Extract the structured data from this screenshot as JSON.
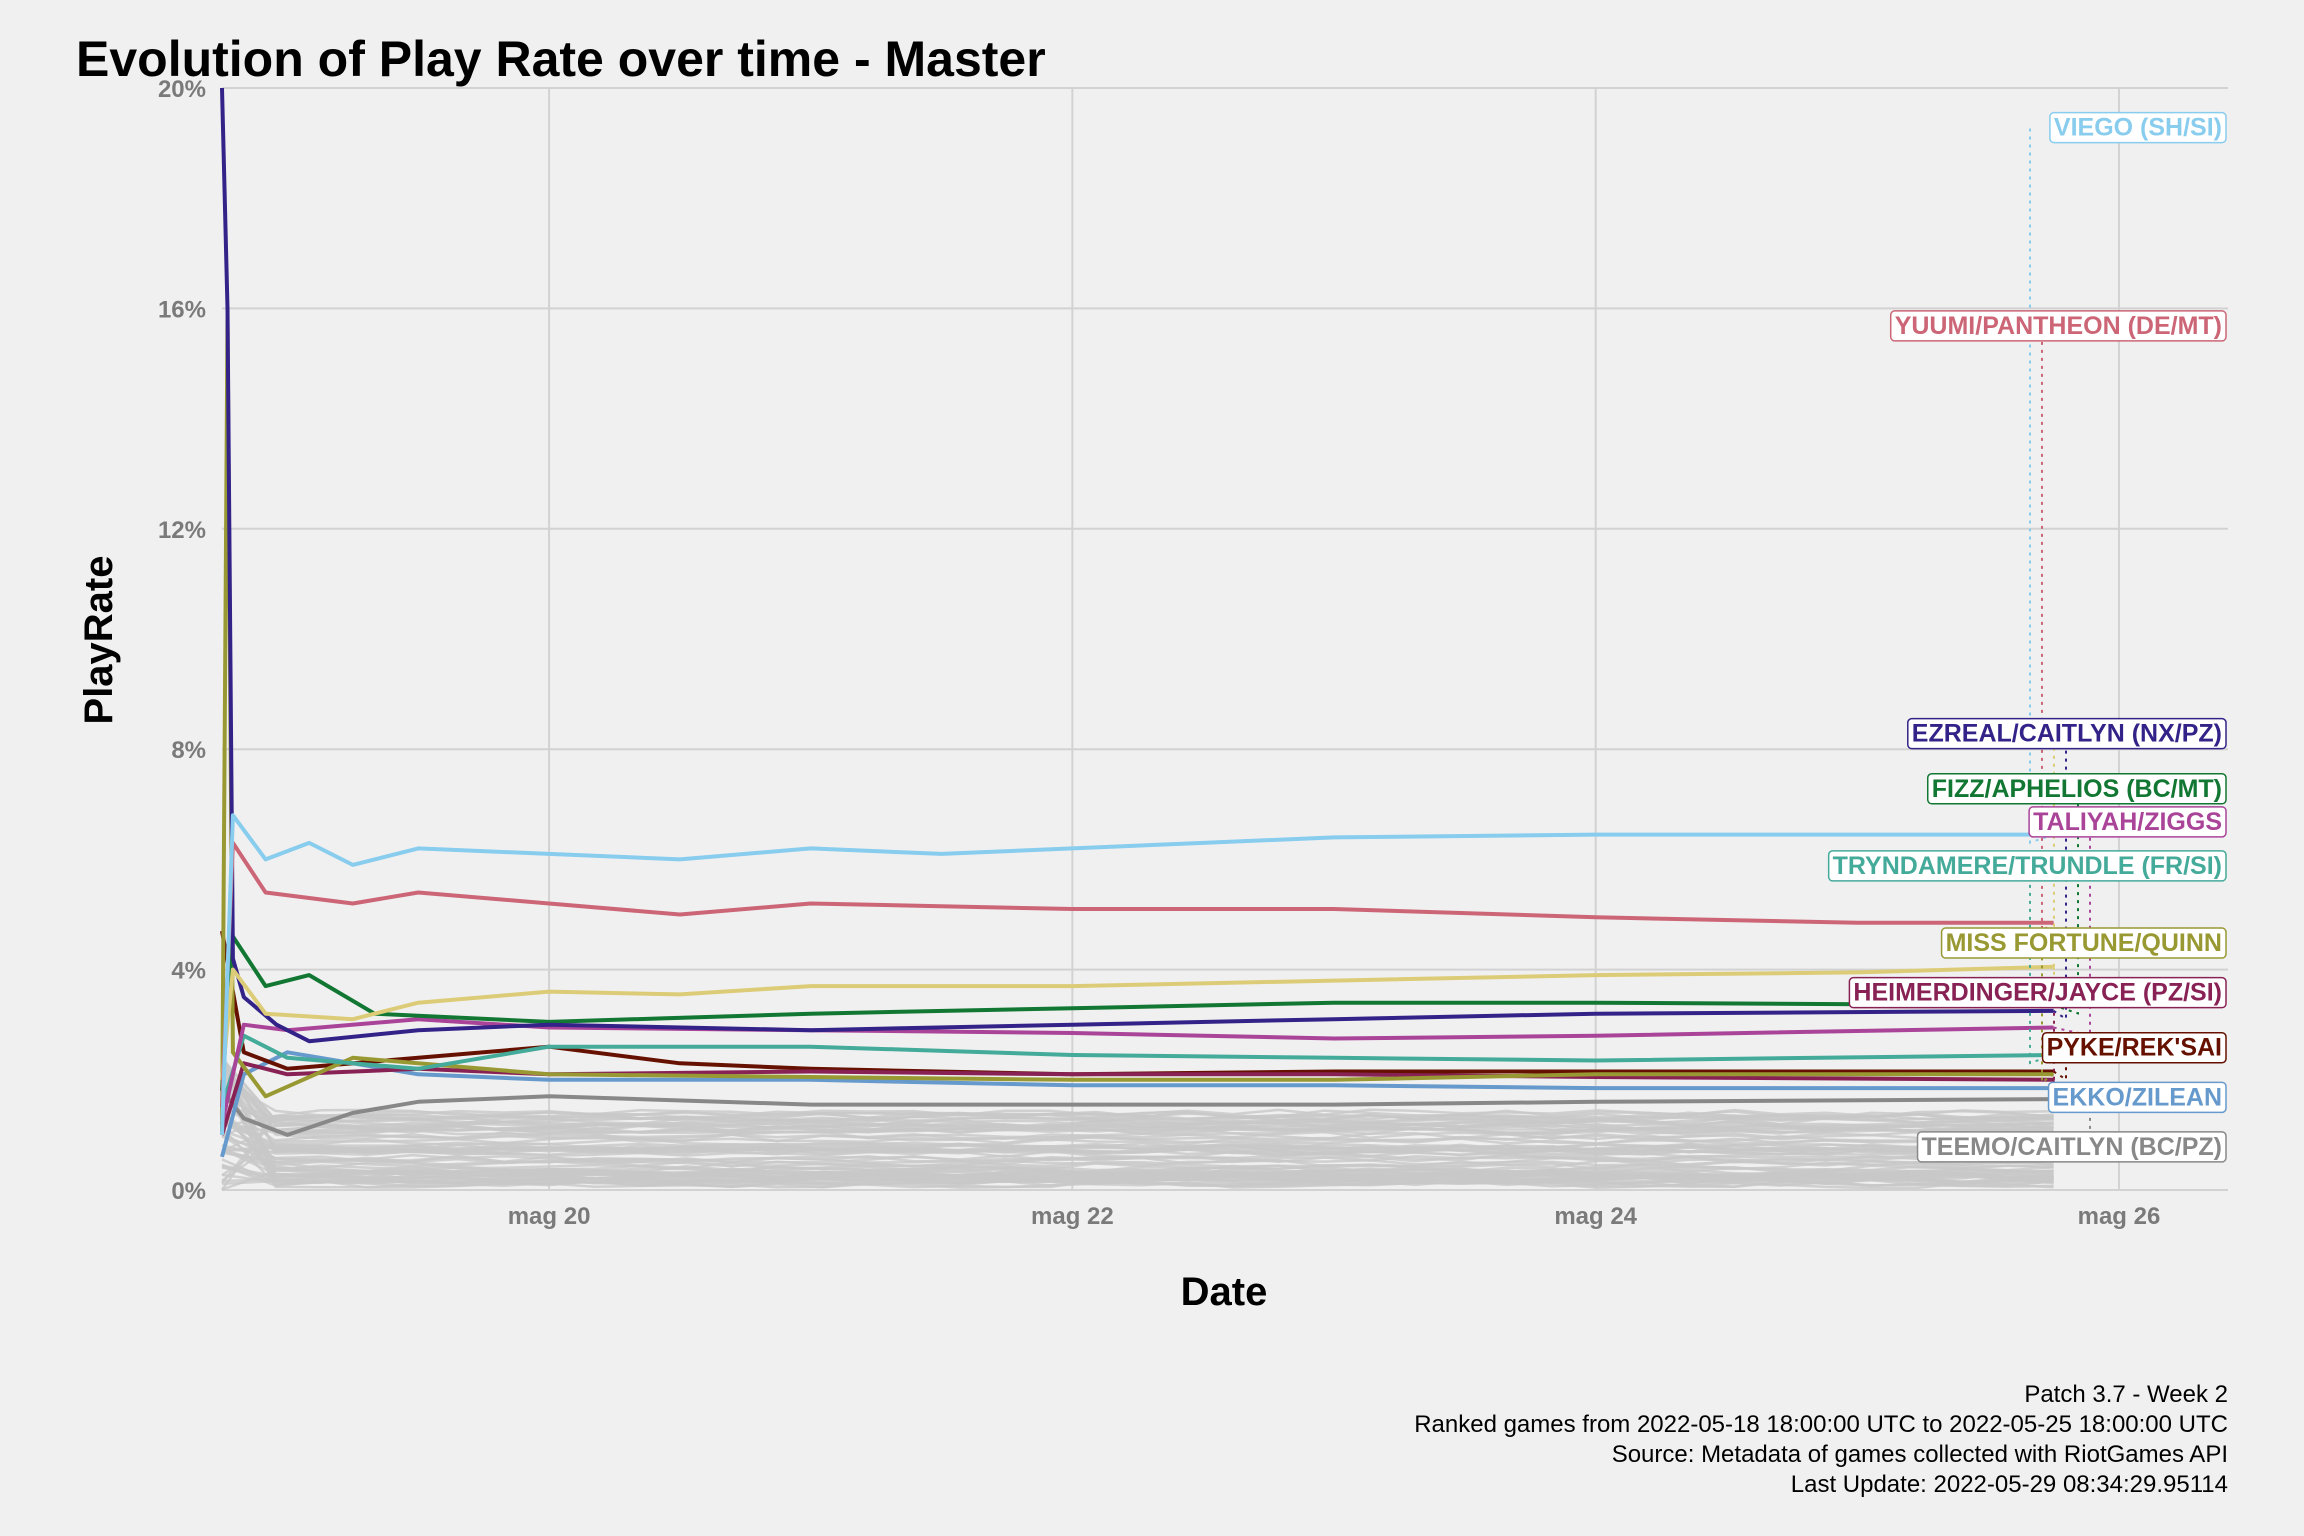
{
  "chart_data": {
    "type": "line",
    "title": "Evolution of Play Rate over time - Master",
    "xlabel": "Date",
    "ylabel": "PlayRate",
    "x_range": [
      "2022-05-18T18:00",
      "2022-05-26T10:00"
    ],
    "x_ticks": [
      {
        "date": "2022-05-20",
        "label": "mag 20"
      },
      {
        "date": "2022-05-22",
        "label": "mag 22"
      },
      {
        "date": "2022-05-24",
        "label": "mag 24"
      },
      {
        "date": "2022-05-26",
        "label": "mag 26"
      }
    ],
    "ylim": [
      0,
      20
    ],
    "y_ticks": [
      {
        "value": 0,
        "label": "0%"
      },
      {
        "value": 4,
        "label": "4%"
      },
      {
        "value": 8,
        "label": "8%"
      },
      {
        "value": 12,
        "label": "12%"
      },
      {
        "value": 16,
        "label": "16%"
      },
      {
        "value": 20,
        "label": "20%"
      }
    ],
    "grid": true,
    "legend": "direct labels at right",
    "series": [
      {
        "name": "VIEGO (SH/SI)",
        "color": "#88ccee",
        "label_value": 19.3,
        "points": [
          [
            "2022-05-18T18:00",
            1.0
          ],
          [
            "2022-05-18T19:00",
            6.8
          ],
          [
            "2022-05-18T22:00",
            6.0
          ],
          [
            "2022-05-19T02:00",
            6.3
          ],
          [
            "2022-05-19T06:00",
            5.9
          ],
          [
            "2022-05-19T12:00",
            6.2
          ],
          [
            "2022-05-20T00:00",
            6.1
          ],
          [
            "2022-05-20T12:00",
            6.0
          ],
          [
            "2022-05-21T00:00",
            6.2
          ],
          [
            "2022-05-21T12:00",
            6.1
          ],
          [
            "2022-05-22T00:00",
            6.2
          ],
          [
            "2022-05-22T12:00",
            6.3
          ],
          [
            "2022-05-23T00:00",
            6.4
          ],
          [
            "2022-05-24T00:00",
            6.45
          ],
          [
            "2022-05-25T18:00",
            6.45
          ]
        ]
      },
      {
        "name": "YUUMI/PANTHEON (DE/MT)",
        "color": "#cc6677",
        "label_value": 15.7,
        "points": [
          [
            "2022-05-18T18:00",
            1.5
          ],
          [
            "2022-05-18T19:00",
            6.3
          ],
          [
            "2022-05-18T22:00",
            5.4
          ],
          [
            "2022-05-19T06:00",
            5.2
          ],
          [
            "2022-05-19T12:00",
            5.4
          ],
          [
            "2022-05-20T00:00",
            5.2
          ],
          [
            "2022-05-20T12:00",
            5.0
          ],
          [
            "2022-05-21T00:00",
            5.2
          ],
          [
            "2022-05-22T00:00",
            5.1
          ],
          [
            "2022-05-23T00:00",
            5.1
          ],
          [
            "2022-05-24T00:00",
            4.95
          ],
          [
            "2022-05-25T00:00",
            4.85
          ],
          [
            "2022-05-25T18:00",
            4.85
          ]
        ]
      },
      {
        "name": "",
        "color": "#ddcc77",
        "label_value": 8.5,
        "points": [
          [
            "2022-05-18T18:00",
            2.0
          ],
          [
            "2022-05-18T19:00",
            4.0
          ],
          [
            "2022-05-18T22:00",
            3.2
          ],
          [
            "2022-05-19T06:00",
            3.1
          ],
          [
            "2022-05-19T12:00",
            3.4
          ],
          [
            "2022-05-20T00:00",
            3.6
          ],
          [
            "2022-05-20T12:00",
            3.55
          ],
          [
            "2022-05-21T00:00",
            3.7
          ],
          [
            "2022-05-22T00:00",
            3.7
          ],
          [
            "2022-05-23T00:00",
            3.8
          ],
          [
            "2022-05-24T00:00",
            3.9
          ],
          [
            "2022-05-25T00:00",
            3.95
          ],
          [
            "2022-05-25T18:00",
            4.05
          ]
        ]
      },
      {
        "name": "EZREAL/CAITLYN (NX/PZ)",
        "color": "#332288",
        "label_value": 8.3,
        "points": [
          [
            "2022-05-18T18:00",
            20.0
          ],
          [
            "2022-05-18T18:30",
            16.0
          ],
          [
            "2022-05-18T19:00",
            4.2
          ],
          [
            "2022-05-18T20:00",
            3.5
          ],
          [
            "2022-05-18T23:00",
            3.0
          ],
          [
            "2022-05-19T02:00",
            2.7
          ],
          [
            "2022-05-19T12:00",
            2.9
          ],
          [
            "2022-05-20T00:00",
            3.0
          ],
          [
            "2022-05-21T00:00",
            2.9
          ],
          [
            "2022-05-22T00:00",
            3.0
          ],
          [
            "2022-05-23T00:00",
            3.1
          ],
          [
            "2022-05-24T00:00",
            3.2
          ],
          [
            "2022-05-25T18:00",
            3.25
          ]
        ]
      },
      {
        "name": "FIZZ/APHELIOS (BC/MT)",
        "color": "#117733",
        "label_value": 7.3,
        "points": [
          [
            "2022-05-18T18:00",
            1.8
          ],
          [
            "2022-05-18T19:00",
            4.6
          ],
          [
            "2022-05-18T22:00",
            3.7
          ],
          [
            "2022-05-19T02:00",
            3.9
          ],
          [
            "2022-05-19T08:00",
            3.2
          ],
          [
            "2022-05-20T00:00",
            3.05
          ],
          [
            "2022-05-21T00:00",
            3.2
          ],
          [
            "2022-05-22T00:00",
            3.3
          ],
          [
            "2022-05-23T00:00",
            3.4
          ],
          [
            "2022-05-24T00:00",
            3.4
          ],
          [
            "2022-05-25T18:00",
            3.35
          ]
        ]
      },
      {
        "name": "TALIYAH/ZIGGS",
        "color": "#aa4499",
        "label_value": 6.7,
        "points": [
          [
            "2022-05-18T18:00",
            1.2
          ],
          [
            "2022-05-18T20:00",
            3.0
          ],
          [
            "2022-05-19T00:00",
            2.9
          ],
          [
            "2022-05-19T12:00",
            3.1
          ],
          [
            "2022-05-20T00:00",
            2.95
          ],
          [
            "2022-05-21T00:00",
            2.9
          ],
          [
            "2022-05-22T00:00",
            2.85
          ],
          [
            "2022-05-23T00:00",
            2.75
          ],
          [
            "2022-05-24T00:00",
            2.8
          ],
          [
            "2022-05-25T18:00",
            2.95
          ]
        ]
      },
      {
        "name": "TRYNDAMERE/TRUNDLE (FR/SI)",
        "color": "#44aa99",
        "label_value": 5.9,
        "points": [
          [
            "2022-05-18T18:00",
            1.5
          ],
          [
            "2022-05-18T20:00",
            2.8
          ],
          [
            "2022-05-19T00:00",
            2.4
          ],
          [
            "2022-05-19T12:00",
            2.2
          ],
          [
            "2022-05-20T00:00",
            2.6
          ],
          [
            "2022-05-21T00:00",
            2.6
          ],
          [
            "2022-05-22T00:00",
            2.45
          ],
          [
            "2022-05-23T00:00",
            2.4
          ],
          [
            "2022-05-24T00:00",
            2.35
          ],
          [
            "2022-05-25T18:00",
            2.45
          ]
        ]
      },
      {
        "name": "MISS FORTUNE/QUINN",
        "color": "#999933",
        "label_value": 4.5,
        "points": [
          [
            "2022-05-18T18:00",
            1.0
          ],
          [
            "2022-05-18T18:30",
            15.8
          ],
          [
            "2022-05-18T19:00",
            2.5
          ],
          [
            "2022-05-18T22:00",
            1.7
          ],
          [
            "2022-05-19T06:00",
            2.4
          ],
          [
            "2022-05-20T00:00",
            2.1
          ],
          [
            "2022-05-21T00:00",
            2.05
          ],
          [
            "2022-05-22T00:00",
            2.0
          ],
          [
            "2022-05-23T00:00",
            2.0
          ],
          [
            "2022-05-24T00:00",
            2.1
          ],
          [
            "2022-05-25T18:00",
            2.1
          ]
        ]
      },
      {
        "name": "HEIMERDINGER/JAYCE (PZ/SI)",
        "color": "#882255",
        "label_value": 3.6,
        "points": [
          [
            "2022-05-18T18:00",
            1.0
          ],
          [
            "2022-05-18T20:00",
            2.3
          ],
          [
            "2022-05-19T00:00",
            2.1
          ],
          [
            "2022-05-19T12:00",
            2.2
          ],
          [
            "2022-05-20T00:00",
            2.1
          ],
          [
            "2022-05-21T00:00",
            2.15
          ],
          [
            "2022-05-22T00:00",
            2.1
          ],
          [
            "2022-05-23T00:00",
            2.1
          ],
          [
            "2022-05-24T00:00",
            2.05
          ],
          [
            "2022-05-25T18:00",
            2.0
          ]
        ]
      },
      {
        "name": "PYKE/REK'SAI",
        "color": "#661100",
        "label_value": 2.6,
        "points": [
          [
            "2022-05-18T18:00",
            4.7
          ],
          [
            "2022-05-18T20:00",
            2.5
          ],
          [
            "2022-05-19T00:00",
            2.2
          ],
          [
            "2022-05-19T12:00",
            2.4
          ],
          [
            "2022-05-20T00:00",
            2.6
          ],
          [
            "2022-05-20T12:00",
            2.3
          ],
          [
            "2022-05-21T00:00",
            2.2
          ],
          [
            "2022-05-22T00:00",
            2.1
          ],
          [
            "2022-05-23T00:00",
            2.15
          ],
          [
            "2022-05-24T00:00",
            2.15
          ],
          [
            "2022-05-25T18:00",
            2.15
          ]
        ]
      },
      {
        "name": "EKKO/ZILEAN",
        "color": "#6699cc",
        "label_value": 1.7,
        "points": [
          [
            "2022-05-18T18:00",
            0.6
          ],
          [
            "2022-05-18T20:00",
            2.1
          ],
          [
            "2022-05-19T00:00",
            2.5
          ],
          [
            "2022-05-19T12:00",
            2.1
          ],
          [
            "2022-05-20T00:00",
            2.0
          ],
          [
            "2022-05-21T00:00",
            2.0
          ],
          [
            "2022-05-22T00:00",
            1.9
          ],
          [
            "2022-05-23T00:00",
            1.9
          ],
          [
            "2022-05-24T00:00",
            1.85
          ],
          [
            "2022-05-25T18:00",
            1.85
          ]
        ]
      },
      {
        "name": "TEEMO/CAITLYN (BC/PZ)",
        "color": "#888888",
        "label_value": 0.8,
        "points": [
          [
            "2022-05-18T18:00",
            1.8
          ],
          [
            "2022-05-18T20:00",
            1.3
          ],
          [
            "2022-05-19T00:00",
            1.0
          ],
          [
            "2022-05-19T06:00",
            1.4
          ],
          [
            "2022-05-19T12:00",
            1.6
          ],
          [
            "2022-05-20T00:00",
            1.7
          ],
          [
            "2022-05-21T00:00",
            1.55
          ],
          [
            "2022-05-22T00:00",
            1.55
          ],
          [
            "2022-05-23T00:00",
            1.55
          ],
          [
            "2022-05-24T00:00",
            1.6
          ],
          [
            "2022-05-25T18:00",
            1.65
          ]
        ]
      }
    ],
    "background_series_color": "#c8c8c8"
  },
  "caption": {
    "line1": "Patch 3.7 - Week 2",
    "line2": "Ranked games from 2022-05-18 18:00:00 UTC to 2022-05-25 18:00:00 UTC",
    "line3": "Source: Metadata of games collected with RiotGames API",
    "line4": "Last Update: 2022-05-29 08:34:29.95114"
  }
}
